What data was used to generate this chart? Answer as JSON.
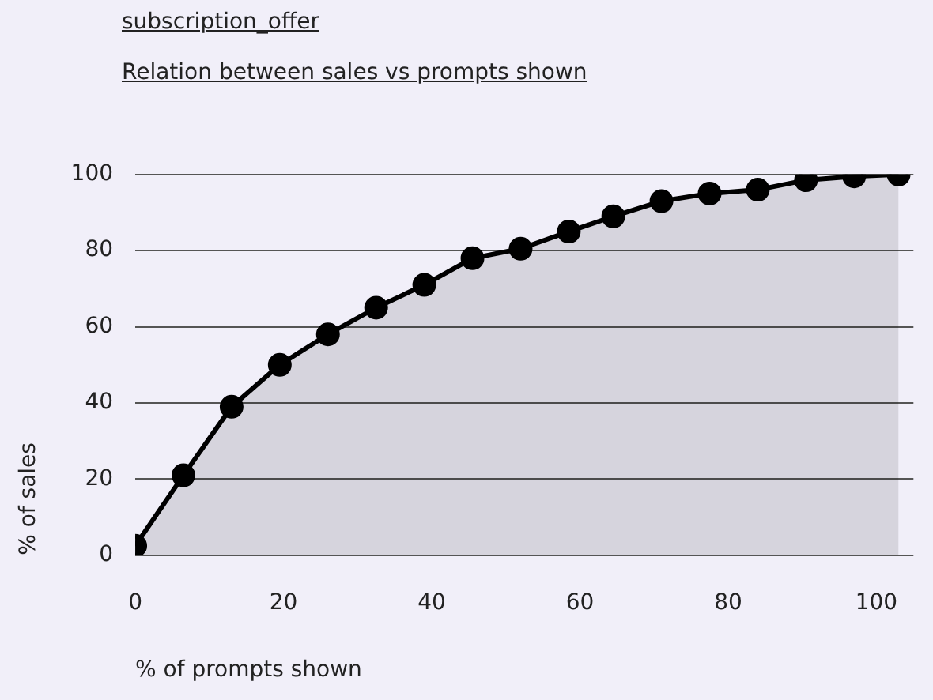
{
  "chart_data": {
    "type": "area",
    "title": "subscription_offer",
    "subtitle": "Relation between sales vs prompts shown",
    "xlabel": "% of prompts shown",
    "ylabel": "% of sales",
    "x": [
      0,
      6.5,
      13,
      19.5,
      26,
      32.5,
      39,
      45.5,
      52,
      58.5,
      64.5,
      71,
      77.5,
      84,
      90.5,
      97,
      103
    ],
    "series": [
      {
        "color": "#000000",
        "values": [
          2.5,
          21,
          39,
          50,
          58,
          65,
          71,
          78,
          80.5,
          85,
          89,
          93,
          95,
          96,
          98.5,
          99.5,
          100
        ]
      }
    ],
    "xlim": [
      0,
      105
    ],
    "xticks": [
      0,
      20,
      40,
      60,
      80,
      100
    ],
    "ylim": [
      0,
      100
    ],
    "yticks": [
      0,
      20,
      40,
      60,
      80,
      100
    ],
    "grid": "y",
    "legend": false,
    "marker": "circle",
    "line_style": "solid"
  }
}
